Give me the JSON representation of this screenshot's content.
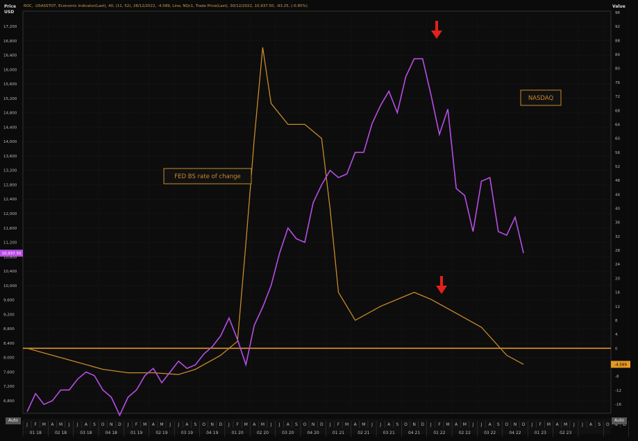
{
  "header": {
    "instrument": "ROC, .USASSTOT, Economic Indicator(Last), 40, (11, 52), 28/12/2022, -4.589, Line; NQc1, Trade Price(Last), 30/12/2022, 10,937.50, -93.25, (-0.85%)"
  },
  "left_axis": {
    "title": "Price",
    "unit": "USD",
    "ticks": [
      "17,200",
      "16,800",
      "16,400",
      "16,000",
      "15,600",
      "15,200",
      "14,800",
      "14,400",
      "14,000",
      "13,600",
      "13,200",
      "12,800",
      "12,400",
      "12,000",
      "11,600",
      "11,200",
      "10,800",
      "10,400",
      "10,000",
      "9,600",
      "9,200",
      "8,800",
      "8,400",
      "8,000",
      "7,600",
      "7,200",
      "6,800"
    ]
  },
  "right_axis": {
    "title": "Value",
    "ticks": [
      "96",
      "92",
      "88",
      "84",
      "80",
      "76",
      "72",
      "68",
      "64",
      "60",
      "56",
      "52",
      "48",
      "44",
      "40",
      "36",
      "32",
      "28",
      "24",
      "20",
      "16",
      "12",
      "8",
      "4",
      "0",
      "-4",
      "-8",
      "-12",
      "-16"
    ]
  },
  "annotations": {
    "fed": "FED BS rate of change",
    "nasdaq": "NASDAQ"
  },
  "tags": {
    "nasdaq_last": "10,937.50",
    "fed_last": "-4.589"
  },
  "buttons": {
    "auto_left": "Auto",
    "auto_right": "Auto"
  },
  "x_axis": {
    "months": [
      "J",
      "F",
      "M",
      "A",
      "M",
      "J",
      "J",
      "A",
      "S",
      "O",
      "N",
      "D",
      "J",
      "F",
      "M",
      "A",
      "M",
      "J",
      "J",
      "A",
      "S",
      "O",
      "N",
      "D",
      "J",
      "F",
      "M",
      "A",
      "M",
      "J",
      "J",
      "A",
      "S",
      "O",
      "N",
      "D",
      "J",
      "F",
      "M",
      "A",
      "M",
      "J",
      "J",
      "A",
      "S",
      "O",
      "N",
      "D",
      "J",
      "F",
      "M",
      "A",
      "M",
      "J",
      "J",
      "A",
      "S",
      "O",
      "N",
      "D",
      "J",
      "F",
      "M",
      "A",
      "M",
      "J",
      "J",
      "A",
      "S",
      "O",
      "N",
      "D"
    ],
    "quarters": [
      "01 18",
      "02 18",
      "03 18",
      "04 18",
      "01 19",
      "02 19",
      "03 19",
      "04 19",
      "01 20",
      "02 20",
      "03 20",
      "04 20",
      "01 21",
      "02 21",
      "03 21",
      "04 21",
      "01 22",
      "02 22",
      "03 22",
      "04 22",
      "01 23",
      "02 23"
    ]
  },
  "colors": {
    "nasdaq": "#b84ee6",
    "fed": "#c88a2a",
    "zero_line": "#e0962a",
    "arrow": "#e3201b",
    "grid": "#2a2a2a"
  },
  "chart_data": {
    "type": "line",
    "x_range": [
      "2018-01",
      "2023-06"
    ],
    "series": [
      {
        "name": "NASDAQ",
        "axis": "left",
        "unit": "USD",
        "x": [
          "2018-01",
          "2018-02",
          "2018-03",
          "2018-04",
          "2018-05",
          "2018-06",
          "2018-07",
          "2018-08",
          "2018-09",
          "2018-10",
          "2018-11",
          "2018-12",
          "2019-01",
          "2019-02",
          "2019-03",
          "2019-04",
          "2019-05",
          "2019-06",
          "2019-07",
          "2019-08",
          "2019-09",
          "2019-10",
          "2019-11",
          "2019-12",
          "2020-01",
          "2020-02",
          "2020-03",
          "2020-04",
          "2020-05",
          "2020-06",
          "2020-07",
          "2020-08",
          "2020-09",
          "2020-10",
          "2020-11",
          "2020-12",
          "2021-01",
          "2021-02",
          "2021-03",
          "2021-04",
          "2021-05",
          "2021-06",
          "2021-07",
          "2021-08",
          "2021-09",
          "2021-10",
          "2021-11",
          "2021-12",
          "2022-01",
          "2022-02",
          "2022-03",
          "2022-04",
          "2022-05",
          "2022-06",
          "2022-07",
          "2022-08",
          "2022-09",
          "2022-10",
          "2022-11",
          "2022-12"
        ],
        "values": [
          6500,
          7000,
          6700,
          6800,
          7100,
          7100,
          7400,
          7600,
          7500,
          7100,
          6900,
          6400,
          6900,
          7100,
          7500,
          7700,
          7300,
          7600,
          7900,
          7700,
          7800,
          8100,
          8300,
          8600,
          9100,
          8500,
          7800,
          8900,
          9400,
          10000,
          10900,
          11600,
          11300,
          11200,
          12300,
          12800,
          13200,
          13000,
          13100,
          13700,
          13700,
          14500,
          15000,
          15400,
          14800,
          15800,
          16300,
          16300,
          15300,
          14200,
          14900,
          12700,
          12500,
          11500,
          12900,
          13000,
          11500,
          11400,
          11900,
          10900
        ]
      },
      {
        "name": "FED BS rate of change",
        "axis": "right",
        "unit": "value",
        "x": [
          "2018-01",
          "2018-04",
          "2018-07",
          "2018-10",
          "2019-01",
          "2019-04",
          "2019-07",
          "2019-09",
          "2019-12",
          "2020-02",
          "2020-03",
          "2020-04",
          "2020-05",
          "2020-06",
          "2020-08",
          "2020-10",
          "2020-12",
          "2021-01",
          "2021-02",
          "2021-04",
          "2021-07",
          "2021-10",
          "2021-11",
          "2022-01",
          "2022-04",
          "2022-07",
          "2022-10",
          "2022-12"
        ],
        "values": [
          0,
          -2,
          -4,
          -6,
          -7,
          -7,
          -7.5,
          -6,
          -2,
          2,
          30,
          60,
          86,
          70,
          64,
          64,
          60,
          40,
          16,
          8,
          12,
          15,
          16,
          14,
          10,
          6,
          -2,
          -4.589
        ]
      }
    ]
  }
}
